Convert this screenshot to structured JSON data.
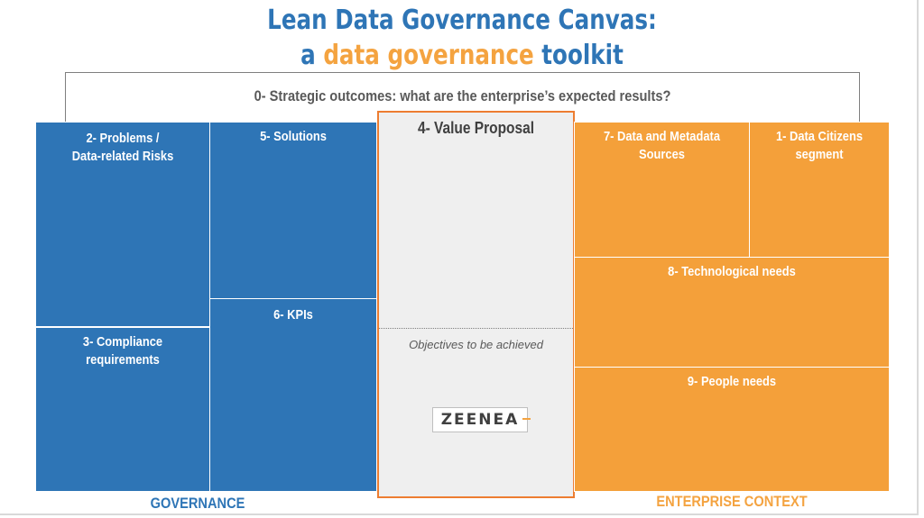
{
  "title": {
    "line1": "Lean Data Governance Canvas:",
    "line2_prefix": "a ",
    "line2_accent": "data governance",
    "line2_suffix": " toolkit"
  },
  "outcomes": {
    "label": "0- Strategic outcomes: what are the enterprise’s expected results?"
  },
  "blocks": {
    "problems": {
      "line1": "2- Problems /",
      "line2": "Data-related Risks"
    },
    "compliance": {
      "line1": "3- Compliance",
      "line2": "requirements"
    },
    "solutions": {
      "label": "5- Solutions"
    },
    "kpis": {
      "label": "6- KPIs"
    },
    "value_proposal": {
      "title": "4- Value Proposal",
      "objectives": "Objectives to be achieved"
    },
    "sources": {
      "line1": "7- Data and Metadata",
      "line2": "Sources"
    },
    "citizens": {
      "line1": "1- Data Citizens",
      "line2": "segment"
    },
    "tech": {
      "label": "8- Technological needs"
    },
    "people": {
      "label": "9- People needs"
    }
  },
  "logo": {
    "text": "ZEENEA"
  },
  "footer": {
    "governance": "GOVERNANCE",
    "enterprise": "ENTERPRISE CONTEXT"
  },
  "colors": {
    "blue": "#2e75b6",
    "orange": "#f4a03a",
    "value_border": "#ed7d31",
    "value_bg": "#efefef"
  }
}
